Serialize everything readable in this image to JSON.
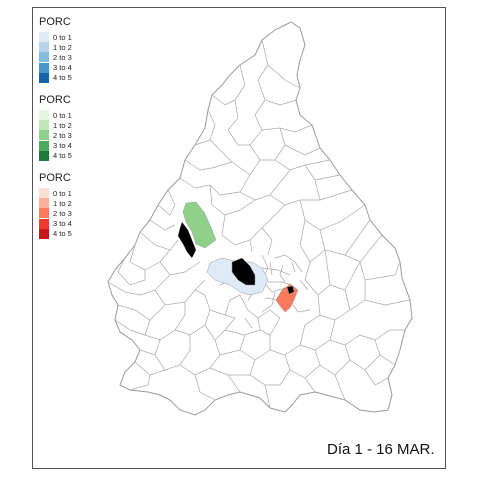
{
  "legends": [
    {
      "title": "PORC",
      "items": [
        {
          "label": "0 to 1",
          "color": "#deebf7"
        },
        {
          "label": "1 to 2",
          "color": "#b7d4ea"
        },
        {
          "label": "2 to 3",
          "color": "#84bcdb"
        },
        {
          "label": "3 to 4",
          "color": "#4a97c9"
        },
        {
          "label": "4 to 5",
          "color": "#1764ab"
        }
      ]
    },
    {
      "title": "PORC",
      "items": [
        {
          "label": "0 to 1",
          "color": "#e5f5e0"
        },
        {
          "label": "1 to 2",
          "color": "#c0e6b9"
        },
        {
          "label": "2 to 3",
          "color": "#8fd18b"
        },
        {
          "label": "3 to 4",
          "color": "#4bab5d"
        },
        {
          "label": "4 to 5",
          "color": "#1d7a3a"
        }
      ]
    },
    {
      "title": "PORC",
      "items": [
        {
          "label": "0 to 1",
          "color": "#fee0d2"
        },
        {
          "label": "1 to 2",
          "color": "#fcb09a"
        },
        {
          "label": "2 to 3",
          "color": "#fb7a5b"
        },
        {
          "label": "3 to 4",
          "color": "#ef3b2c"
        },
        {
          "label": "4 to 5",
          "color": "#c7161c"
        }
      ]
    }
  ],
  "caption": "Día 1 - 16 MAR.",
  "highlighted_regions": [
    {
      "fill": "#8fd18b",
      "class": "green 2 to 3"
    },
    {
      "fill": "#000000",
      "class": "no data"
    },
    {
      "fill": "#deebf7",
      "class": "blue 0 to 1"
    },
    {
      "fill": "#000000",
      "class": "no data"
    },
    {
      "fill": "#fb7a5b",
      "class": "red 2 to 3"
    },
    {
      "fill": "#000000",
      "class": "no data"
    }
  ]
}
